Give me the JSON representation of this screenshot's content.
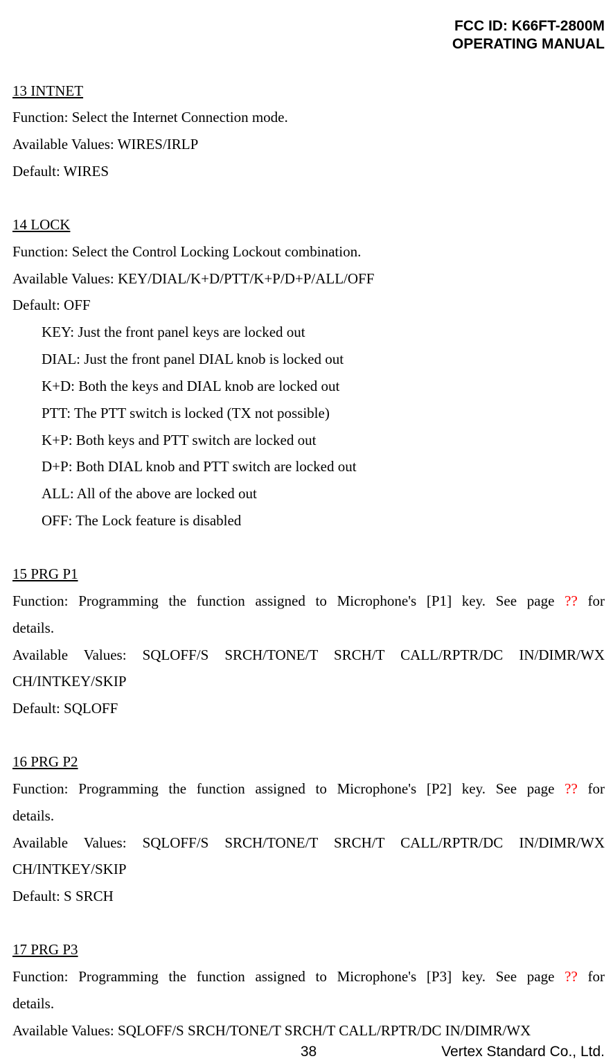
{
  "header": {
    "fcc_id": "FCC ID: K66FT-2800M",
    "doc_type": "OPERATING MANUAL"
  },
  "sections": {
    "s13": {
      "title": "13 INTNET",
      "function": "Function: Select the Internet Connection mode.",
      "values": "Available Values: WIRES/IRLP",
      "default": "Default: WIRES"
    },
    "s14": {
      "title": "14 LOCK",
      "function": "Function: Select the Control Locking Lockout combination.",
      "values": "Available Values: KEY/DIAL/K+D/PTT/K+P/D+P/ALL/OFF",
      "default": "Default: OFF",
      "opt_key": "KEY: Just the front panel keys are locked out",
      "opt_dial": "DIAL: Just the front panel DIAL knob is locked out",
      "opt_kd": "K+D: Both the keys and DIAL knob are locked out",
      "opt_ptt": "PTT: The PTT switch is locked (TX not possible)",
      "opt_kp": "K+P: Both keys and PTT switch are locked out",
      "opt_dp": "D+P: Both DIAL knob and PTT switch are locked out",
      "opt_all": "ALL: All of the above are locked out",
      "opt_off": "OFF: The Lock feature is disabled"
    },
    "s15": {
      "title": "15 PRG P1",
      "func_pre": "Function: Programming the function assigned to Microphone's [P1] key. See page ",
      "func_red": "??",
      "func_post": " for",
      "func_line2": "details.",
      "values_line1": "Available Values: SQLOFF/S SRCH/TONE/T SRCH/T CALL/RPTR/DC IN/DIMR/WX",
      "values_line2": "CH/INTKEY/SKIP",
      "default": "Default: SQLOFF"
    },
    "s16": {
      "title": "16 PRG P2",
      "func_pre": "Function: Programming the function assigned to Microphone's [P2] key. See page ",
      "func_red": "??",
      "func_post": " for",
      "func_line2": "details.",
      "values_line1": "Available Values: SQLOFF/S SRCH/TONE/T SRCH/T CALL/RPTR/DC IN/DIMR/WX",
      "values_line2": "CH/INTKEY/SKIP",
      "default": "Default: S SRCH"
    },
    "s17": {
      "title": "17 PRG P3",
      "func_pre": "Function: Programming the function assigned to Microphone's [P3] key. See page ",
      "func_red": "??",
      "func_post": " for",
      "func_line2": "details.",
      "values": "Available Values: SQLOFF/S SRCH/TONE/T SRCH/T CALL/RPTR/DC IN/DIMR/WX"
    }
  },
  "footer": {
    "page_number": "38",
    "company": "Vertex Standard Co., Ltd."
  },
  "colors": {
    "text": "#000000",
    "red": "#ff0000",
    "background": "#ffffff"
  },
  "typography": {
    "body_font": "Times New Roman",
    "header_font": "Arial",
    "body_size_pt": 16,
    "header_size_pt": 16
  }
}
